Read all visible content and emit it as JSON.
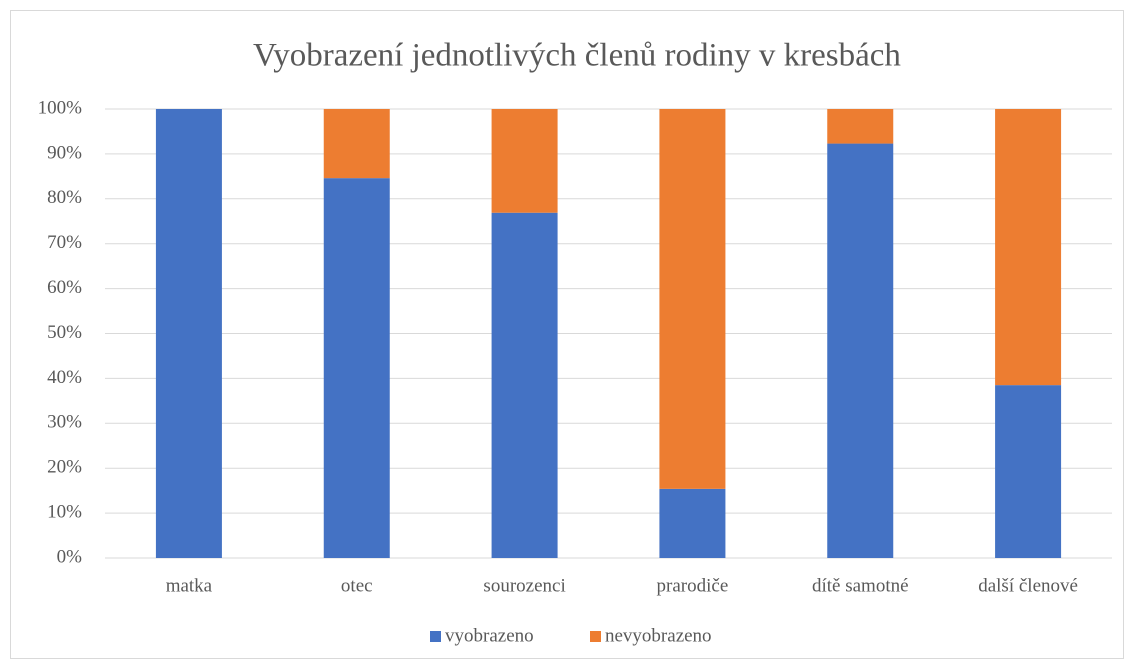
{
  "chart_data": {
    "type": "stacked_bar",
    "title": "Vyobrazení jednotlivých členů rodiny v kresbách",
    "categories": [
      "matka",
      "otec",
      "sourozenci",
      "prarodiče",
      "dítě samotné",
      "další členové"
    ],
    "series": [
      {
        "name": "vyobrazeno",
        "color": "#4472c4",
        "values": [
          100,
          84.6,
          76.9,
          15.4,
          92.3,
          38.5
        ]
      },
      {
        "name": "nevyobrazeno",
        "color": "#ed7d31",
        "values": [
          0,
          15.4,
          23.1,
          84.6,
          7.7,
          61.5
        ]
      }
    ],
    "ylim": [
      0,
      100
    ],
    "yticks": [
      {
        "value": 0,
        "label": "0%"
      },
      {
        "value": 10,
        "label": "10%"
      },
      {
        "value": 20,
        "label": "20%"
      },
      {
        "value": 30,
        "label": "30%"
      },
      {
        "value": 40,
        "label": "40%"
      },
      {
        "value": 50,
        "label": "50%"
      },
      {
        "value": 60,
        "label": "60%"
      },
      {
        "value": 70,
        "label": "70%"
      },
      {
        "value": 80,
        "label": "80%"
      },
      {
        "value": 90,
        "label": "90%"
      },
      {
        "value": 100,
        "label": "100%"
      }
    ],
    "grid": true,
    "legend": "bottom"
  }
}
